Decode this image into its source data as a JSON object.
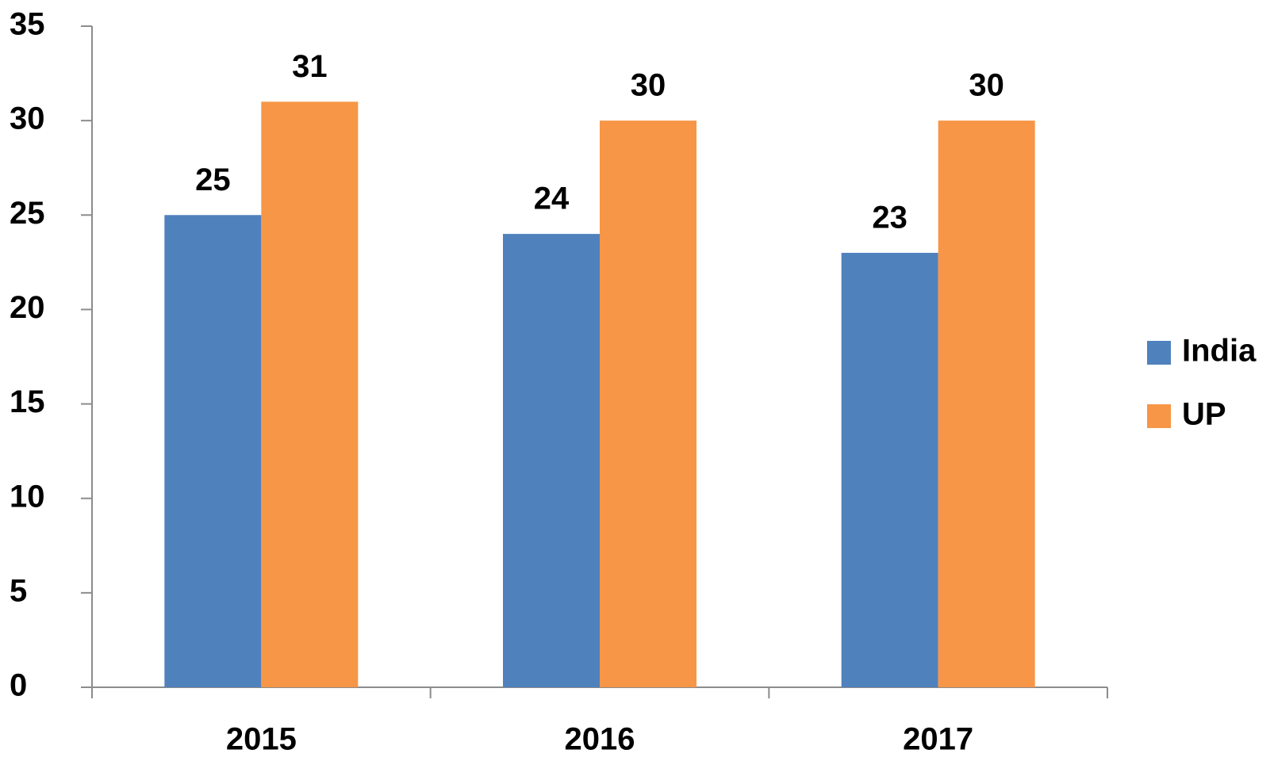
{
  "chart_data": {
    "type": "bar",
    "categories": [
      "2015",
      "2016",
      "2017"
    ],
    "series": [
      {
        "name": "India",
        "color": "#4f81bd",
        "values": [
          25,
          24,
          23
        ]
      },
      {
        "name": "UP",
        "color": "#f79646",
        "values": [
          31,
          30,
          30
        ]
      }
    ],
    "ylim": [
      0,
      35
    ],
    "yticks": [
      0,
      5,
      10,
      15,
      20,
      25,
      30,
      35
    ],
    "grid": false,
    "legend": "right"
  }
}
